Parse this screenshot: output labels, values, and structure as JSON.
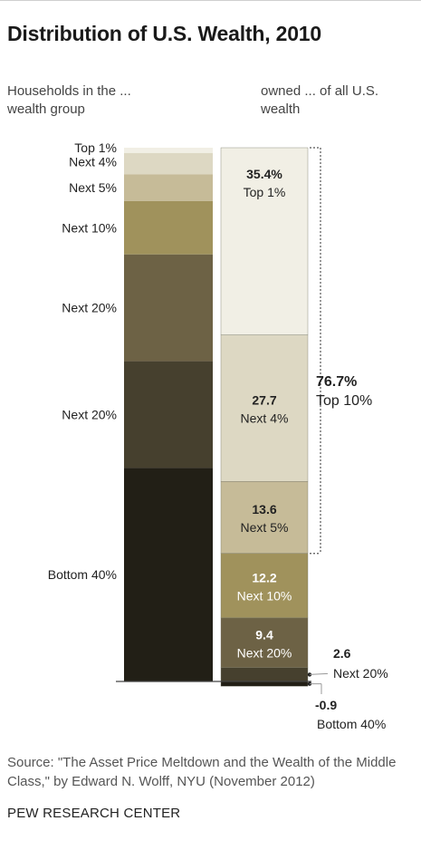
{
  "title": "Distribution of U.S. Wealth, 2010",
  "left_header": "Households in the ... wealth group",
  "right_header": "owned ... of all U.S. wealth",
  "chart_data": {
    "type": "bar",
    "title": "Distribution of U.S. Wealth, 2010",
    "households": {
      "header": "Households in the ... wealth group",
      "groups": [
        {
          "label": "Top 1%",
          "share": 1,
          "color": "#f1efe5"
        },
        {
          "label": "Next 4%",
          "share": 4,
          "color": "#ddd8c3"
        },
        {
          "label": "Next 5%",
          "share": 5,
          "color": "#c6bb98"
        },
        {
          "label": "Next 10%",
          "share": 10,
          "color": "#a0925c"
        },
        {
          "label": "Next 20%",
          "share": 20,
          "color": "#6d6245"
        },
        {
          "label": "Next 20%",
          "share": 20,
          "color": "#46402e"
        },
        {
          "label": "Bottom 40%",
          "share": 40,
          "color": "#221f16"
        }
      ]
    },
    "wealth": {
      "header": "owned ... of all U.S. wealth",
      "segments": [
        {
          "value_label": "35.4%",
          "group": "Top 1%",
          "value": 35.4,
          "color": "#f1efe5",
          "text_color": "#222222"
        },
        {
          "value_label": "27.7",
          "group": "Next 4%",
          "value": 27.7,
          "color": "#ddd8c3",
          "text_color": "#222222"
        },
        {
          "value_label": "13.6",
          "group": "Next 5%",
          "value": 13.6,
          "color": "#c6bb98",
          "text_color": "#222222"
        },
        {
          "value_label": "12.2",
          "group": "Next 10%",
          "value": 12.2,
          "color": "#a0925c",
          "text_color": "#ffffff"
        },
        {
          "value_label": "9.4",
          "group": "Next 20%",
          "value": 9.4,
          "color": "#6d6245",
          "text_color": "#ffffff"
        },
        {
          "value_label": "2.6",
          "group": "Next 20%",
          "value": 2.6,
          "color": "#46402e",
          "text_color": "#222222"
        },
        {
          "value_label": "-0.9",
          "group": "Bottom 40%",
          "value": -0.9,
          "color": "#221f16",
          "text_color": "#222222"
        }
      ]
    },
    "bracket": {
      "value_label": "76.7%",
      "label": "Top 10%",
      "value": 76.7
    }
  },
  "source": "Source: \"The Asset Price Meltdown and the Wealth of the Middle Class,\" by Edward N. Wolff, NYU (November 2012)",
  "organization": "PEW RESEARCH CENTER"
}
